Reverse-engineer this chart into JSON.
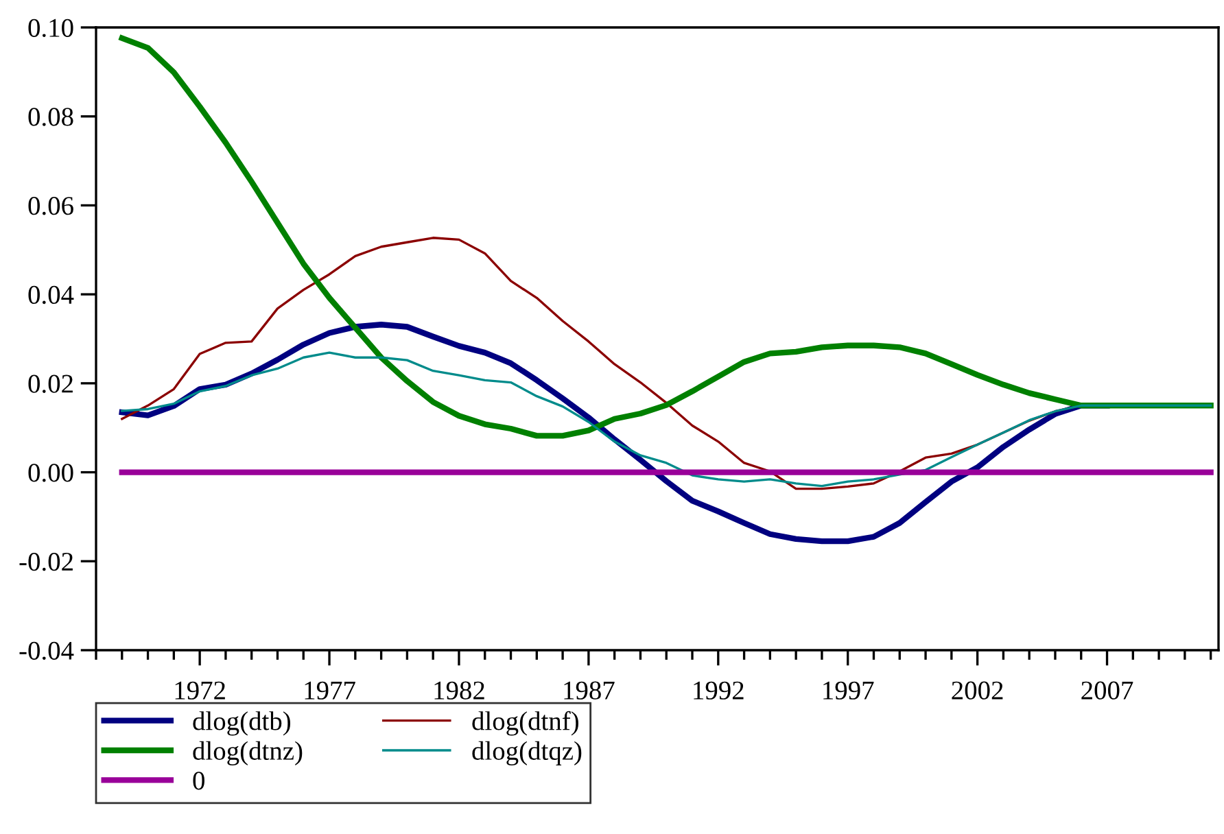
{
  "chart_data": {
    "type": "line",
    "x": [
      1969,
      1970,
      1971,
      1972,
      1973,
      1974,
      1975,
      1976,
      1977,
      1978,
      1979,
      1980,
      1981,
      1982,
      1983,
      1984,
      1985,
      1986,
      1987,
      1988,
      1989,
      1990,
      1991,
      1992,
      1993,
      1994,
      1995,
      1996,
      1997,
      1998,
      1999,
      2000,
      2001,
      2002,
      2003,
      2004,
      2005,
      2006,
      2007,
      2008,
      2009,
      2010,
      2011
    ],
    "series": [
      {
        "name": "dlog(dtb)",
        "color": "#000080",
        "values": [
          0.0135,
          0.0128,
          0.0149,
          0.0187,
          0.0197,
          0.0222,
          0.0253,
          0.0287,
          0.0313,
          0.0327,
          0.0332,
          0.0327,
          0.0305,
          0.0284,
          0.0269,
          0.0245,
          0.0207,
          0.0166,
          0.0123,
          0.0074,
          0.0028,
          -0.002,
          -0.0064,
          -0.0088,
          -0.0114,
          -0.0139,
          -0.015,
          -0.0155,
          -0.0155,
          -0.0145,
          -0.0114,
          -0.0067,
          -0.0021,
          0.0011,
          0.0057,
          0.0096,
          0.0131,
          0.015,
          0.015,
          null,
          null,
          null,
          null
        ]
      },
      {
        "name": "dlog(dtnf)",
        "color": "#8b0000",
        "values": [
          0.012,
          0.015,
          0.0187,
          0.0266,
          0.0291,
          0.0294,
          0.0368,
          0.041,
          0.0445,
          0.0486,
          0.0507,
          0.0517,
          0.0527,
          0.0523,
          0.0492,
          0.043,
          0.0392,
          0.034,
          0.0294,
          0.0243,
          0.0202,
          0.0156,
          0.0105,
          0.0069,
          0.0021,
          0.0002,
          -0.0037,
          -0.0037,
          -0.0032,
          -0.0025,
          0.0002,
          0.0033,
          0.0042,
          0.0062,
          0.0089,
          0.0116,
          0.0137,
          0.015,
          null,
          null,
          null,
          null,
          null
        ]
      },
      {
        "name": "dlog(dtnz)",
        "color": "#008000",
        "values": [
          0.0976,
          0.0954,
          0.0899,
          0.0822,
          0.0741,
          0.0653,
          0.0561,
          0.0469,
          0.0392,
          0.0325,
          0.0258,
          0.0205,
          0.0158,
          0.0127,
          0.0108,
          0.0098,
          0.0082,
          0.0082,
          0.0094,
          0.012,
          0.0132,
          0.0151,
          0.0182,
          0.0215,
          0.0248,
          0.0267,
          0.0271,
          0.0281,
          0.0285,
          0.0285,
          0.0281,
          0.0267,
          0.0243,
          0.0219,
          0.0197,
          0.0178,
          0.0164,
          0.015,
          0.015,
          0.015,
          0.015,
          0.015,
          0.015
        ]
      },
      {
        "name": "dlog(dtqz)",
        "color": "#008b8b",
        "values": [
          0.0138,
          0.0142,
          0.0154,
          0.0182,
          0.0194,
          0.0218,
          0.0233,
          0.0258,
          0.0269,
          0.0258,
          0.0258,
          0.0252,
          0.0228,
          0.0218,
          0.0207,
          0.0202,
          0.0171,
          0.0148,
          0.0113,
          0.0069,
          0.0038,
          0.0021,
          -0.0007,
          -0.0016,
          -0.0021,
          -0.0016,
          -0.0025,
          -0.0031,
          -0.0021,
          -0.0016,
          -0.0005,
          0.0005,
          0.0034,
          0.0062,
          0.0089,
          0.0117,
          0.0137,
          0.015,
          0.015,
          0.015,
          0.015,
          0.015,
          0.015
        ]
      },
      {
        "name": "0",
        "color": "#990099",
        "values": [
          0,
          0,
          0,
          0,
          0,
          0,
          0,
          0,
          0,
          0,
          0,
          0,
          0,
          0,
          0,
          0,
          0,
          0,
          0,
          0,
          0,
          0,
          0,
          0,
          0,
          0,
          0,
          0,
          0,
          0,
          0,
          0,
          0,
          0,
          0,
          0,
          0,
          0,
          0,
          0,
          0,
          0,
          0
        ]
      }
    ],
    "xlim": [
      1968,
      2011.3
    ],
    "xticks": [
      {
        "value": 1968,
        "label": null
      },
      {
        "value": 1969,
        "label": null
      },
      {
        "value": 1970,
        "label": null
      },
      {
        "value": 1971,
        "label": null
      },
      1972,
      {
        "value": 1973,
        "label": null
      },
      {
        "value": 1974,
        "label": null
      },
      {
        "value": 1975,
        "label": null
      },
      {
        "value": 1976,
        "label": null
      },
      1977,
      {
        "value": 1978,
        "label": null
      },
      {
        "value": 1979,
        "label": null
      },
      {
        "value": 1980,
        "label": null
      },
      {
        "value": 1981,
        "label": null
      },
      1982,
      {
        "value": 1983,
        "label": null
      },
      {
        "value": 1984,
        "label": null
      },
      {
        "value": 1985,
        "label": null
      },
      {
        "value": 1986,
        "label": null
      },
      1987,
      {
        "value": 1988,
        "label": null
      },
      {
        "value": 1989,
        "label": null
      },
      {
        "value": 1990,
        "label": null
      },
      {
        "value": 1991,
        "label": null
      },
      1992,
      {
        "value": 1993,
        "label": null
      },
      {
        "value": 1994,
        "label": null
      },
      {
        "value": 1995,
        "label": null
      },
      {
        "value": 1996,
        "label": null
      },
      1997,
      {
        "value": 1998,
        "label": null
      },
      {
        "value": 1999,
        "label": null
      },
      {
        "value": 2000,
        "label": null
      },
      {
        "value": 2001,
        "label": null
      },
      2002,
      {
        "value": 2003,
        "label": null
      },
      {
        "value": 2004,
        "label": null
      },
      {
        "value": 2005,
        "label": null
      },
      {
        "value": 2006,
        "label": null
      },
      2007,
      {
        "value": 2008,
        "label": null
      },
      {
        "value": 2009,
        "label": null
      },
      {
        "value": 2010,
        "label": null
      },
      {
        "value": 2011,
        "label": null
      }
    ],
    "ylim": [
      -0.04,
      0.1
    ],
    "yticks": [
      {
        "value": -0.04,
        "label": "-0.04"
      },
      {
        "value": -0.02,
        "label": "-0.02"
      },
      {
        "value": 0,
        "label": "0.00"
      },
      {
        "value": 0.02,
        "label": "0.02"
      },
      {
        "value": 0.04,
        "label": "0.04"
      },
      {
        "value": 0.06,
        "label": "0.06"
      },
      {
        "value": 0.08,
        "label": "0.08"
      },
      {
        "value": 0.1,
        "label": "0.10"
      }
    ],
    "grid": false,
    "legend": "bottom left",
    "marker": "none",
    "line_style": "solid"
  }
}
